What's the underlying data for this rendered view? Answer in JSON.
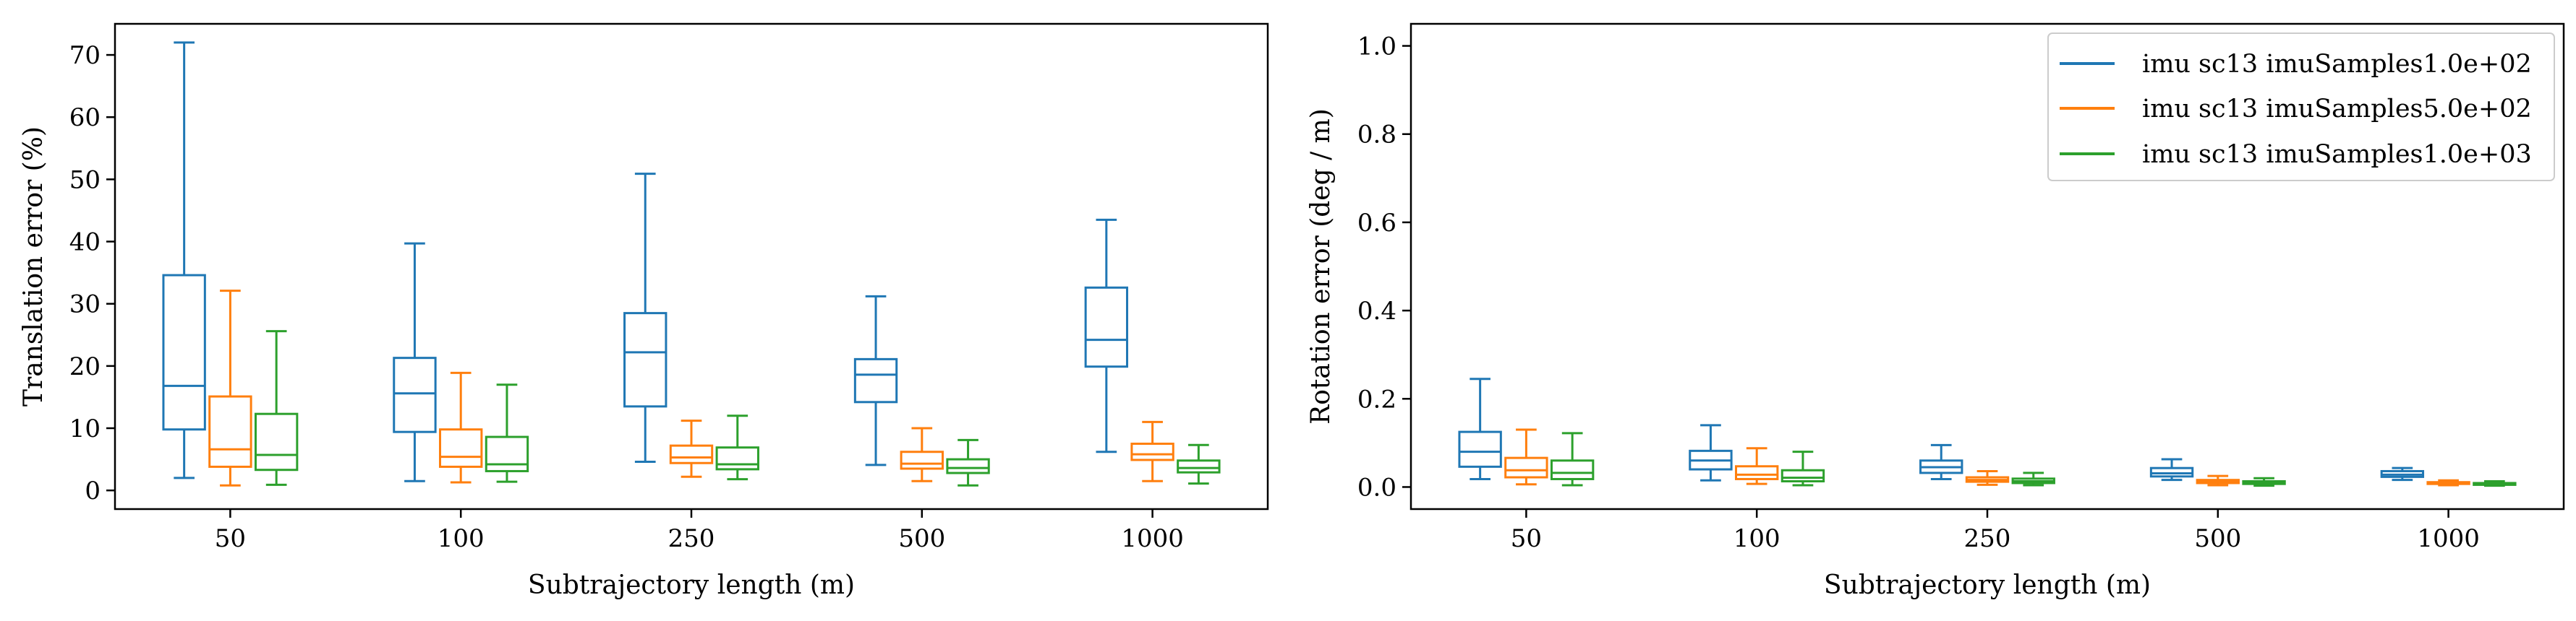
{
  "colors": {
    "series_0": "#1f77b4",
    "series_1": "#ff7f0e",
    "series_2": "#2ca02c"
  },
  "chart_data": [
    {
      "type": "box",
      "xlabel": "Subtrajectory length (m)",
      "ylabel": "Translation error (%)",
      "categories": [
        "50",
        "100",
        "250",
        "500",
        "1000"
      ],
      "ylim": [
        -3,
        75
      ],
      "yticks": [
        0,
        10,
        20,
        30,
        40,
        50,
        60,
        70
      ],
      "ytick_labels": [
        "0",
        "10",
        "20",
        "30",
        "40",
        "50",
        "60",
        "70"
      ],
      "grid": false,
      "series": [
        {
          "color": "#1f77b4",
          "boxes": [
            {
              "min": 2.0,
              "q1": 9.8,
              "median": 16.8,
              "q3": 34.6,
              "max": 72.0
            },
            {
              "min": 1.5,
              "q1": 9.4,
              "median": 15.6,
              "q3": 21.3,
              "max": 39.7
            },
            {
              "min": 4.6,
              "q1": 13.5,
              "median": 22.2,
              "q3": 28.5,
              "max": 50.9
            },
            {
              "min": 4.1,
              "q1": 14.2,
              "median": 18.6,
              "q3": 21.1,
              "max": 31.2
            },
            {
              "min": 6.2,
              "q1": 19.9,
              "median": 24.2,
              "q3": 32.6,
              "max": 43.5
            }
          ]
        },
        {
          "color": "#ff7f0e",
          "boxes": [
            {
              "min": 0.8,
              "q1": 3.8,
              "median": 6.6,
              "q3": 15.1,
              "max": 32.1
            },
            {
              "min": 1.3,
              "q1": 3.8,
              "median": 5.4,
              "q3": 9.8,
              "max": 18.9
            },
            {
              "min": 2.2,
              "q1": 4.4,
              "median": 5.3,
              "q3": 7.2,
              "max": 11.2
            },
            {
              "min": 1.5,
              "q1": 3.5,
              "median": 4.3,
              "q3": 6.2,
              "max": 10.0
            },
            {
              "min": 1.5,
              "q1": 4.9,
              "median": 5.8,
              "q3": 7.5,
              "max": 11.0
            }
          ]
        },
        {
          "color": "#2ca02c",
          "boxes": [
            {
              "min": 0.9,
              "q1": 3.3,
              "median": 5.7,
              "q3": 12.3,
              "max": 25.6
            },
            {
              "min": 1.4,
              "q1": 3.1,
              "median": 4.2,
              "q3": 8.6,
              "max": 17.0
            },
            {
              "min": 1.8,
              "q1": 3.4,
              "median": 4.2,
              "q3": 6.9,
              "max": 12.0
            },
            {
              "min": 0.8,
              "q1": 2.8,
              "median": 3.6,
              "q3": 5.0,
              "max": 8.1
            },
            {
              "min": 1.1,
              "q1": 2.9,
              "median": 3.6,
              "q3": 4.8,
              "max": 7.3
            }
          ]
        }
      ]
    },
    {
      "type": "box",
      "xlabel": "Subtrajectory length (m)",
      "ylabel": "Rotation error (deg / m)",
      "categories": [
        "50",
        "100",
        "250",
        "500",
        "1000"
      ],
      "ylim": [
        -0.05,
        1.05
      ],
      "yticks": [
        0.0,
        0.2,
        0.4,
        0.6,
        0.8,
        1.0
      ],
      "ytick_labels": [
        "0.0",
        "0.2",
        "0.4",
        "0.6",
        "0.8",
        "1.0"
      ],
      "grid": false,
      "legend_position": "top-right",
      "series": [
        {
          "name": "imu sc13 imuSamples1.0e+02",
          "color": "#1f77b4",
          "boxes": [
            {
              "min": 0.018,
              "q1": 0.046,
              "median": 0.08,
              "q3": 0.125,
              "max": 0.245
            },
            {
              "min": 0.015,
              "q1": 0.04,
              "median": 0.06,
              "q3": 0.082,
              "max": 0.14
            },
            {
              "min": 0.018,
              "q1": 0.032,
              "median": 0.045,
              "q3": 0.06,
              "max": 0.095
            },
            {
              "min": 0.016,
              "q1": 0.024,
              "median": 0.031,
              "q3": 0.043,
              "max": 0.063
            },
            {
              "min": 0.016,
              "q1": 0.023,
              "median": 0.028,
              "q3": 0.036,
              "max": 0.043
            }
          ]
        },
        {
          "name": "imu sc13 imuSamples5.0e+02",
          "color": "#ff7f0e",
          "boxes": [
            {
              "min": 0.006,
              "q1": 0.022,
              "median": 0.038,
              "q3": 0.066,
              "max": 0.13
            },
            {
              "min": 0.007,
              "q1": 0.018,
              "median": 0.028,
              "q3": 0.047,
              "max": 0.088
            },
            {
              "min": 0.005,
              "q1": 0.012,
              "median": 0.016,
              "q3": 0.022,
              "max": 0.036
            },
            {
              "min": 0.004,
              "q1": 0.009,
              "median": 0.012,
              "q3": 0.016,
              "max": 0.025
            },
            {
              "min": 0.004,
              "q1": 0.007,
              "median": 0.009,
              "q3": 0.011,
              "max": 0.015
            }
          ]
        },
        {
          "name": "imu sc13 imuSamples1.0e+03",
          "color": "#2ca02c",
          "boxes": [
            {
              "min": 0.004,
              "q1": 0.018,
              "median": 0.032,
              "q3": 0.06,
              "max": 0.122
            },
            {
              "min": 0.004,
              "q1": 0.013,
              "median": 0.021,
              "q3": 0.038,
              "max": 0.08
            },
            {
              "min": 0.004,
              "q1": 0.009,
              "median": 0.013,
              "q3": 0.019,
              "max": 0.032
            },
            {
              "min": 0.003,
              "q1": 0.007,
              "median": 0.01,
              "q3": 0.013,
              "max": 0.02
            },
            {
              "min": 0.003,
              "q1": 0.005,
              "median": 0.007,
              "q3": 0.009,
              "max": 0.013
            }
          ]
        }
      ]
    }
  ]
}
